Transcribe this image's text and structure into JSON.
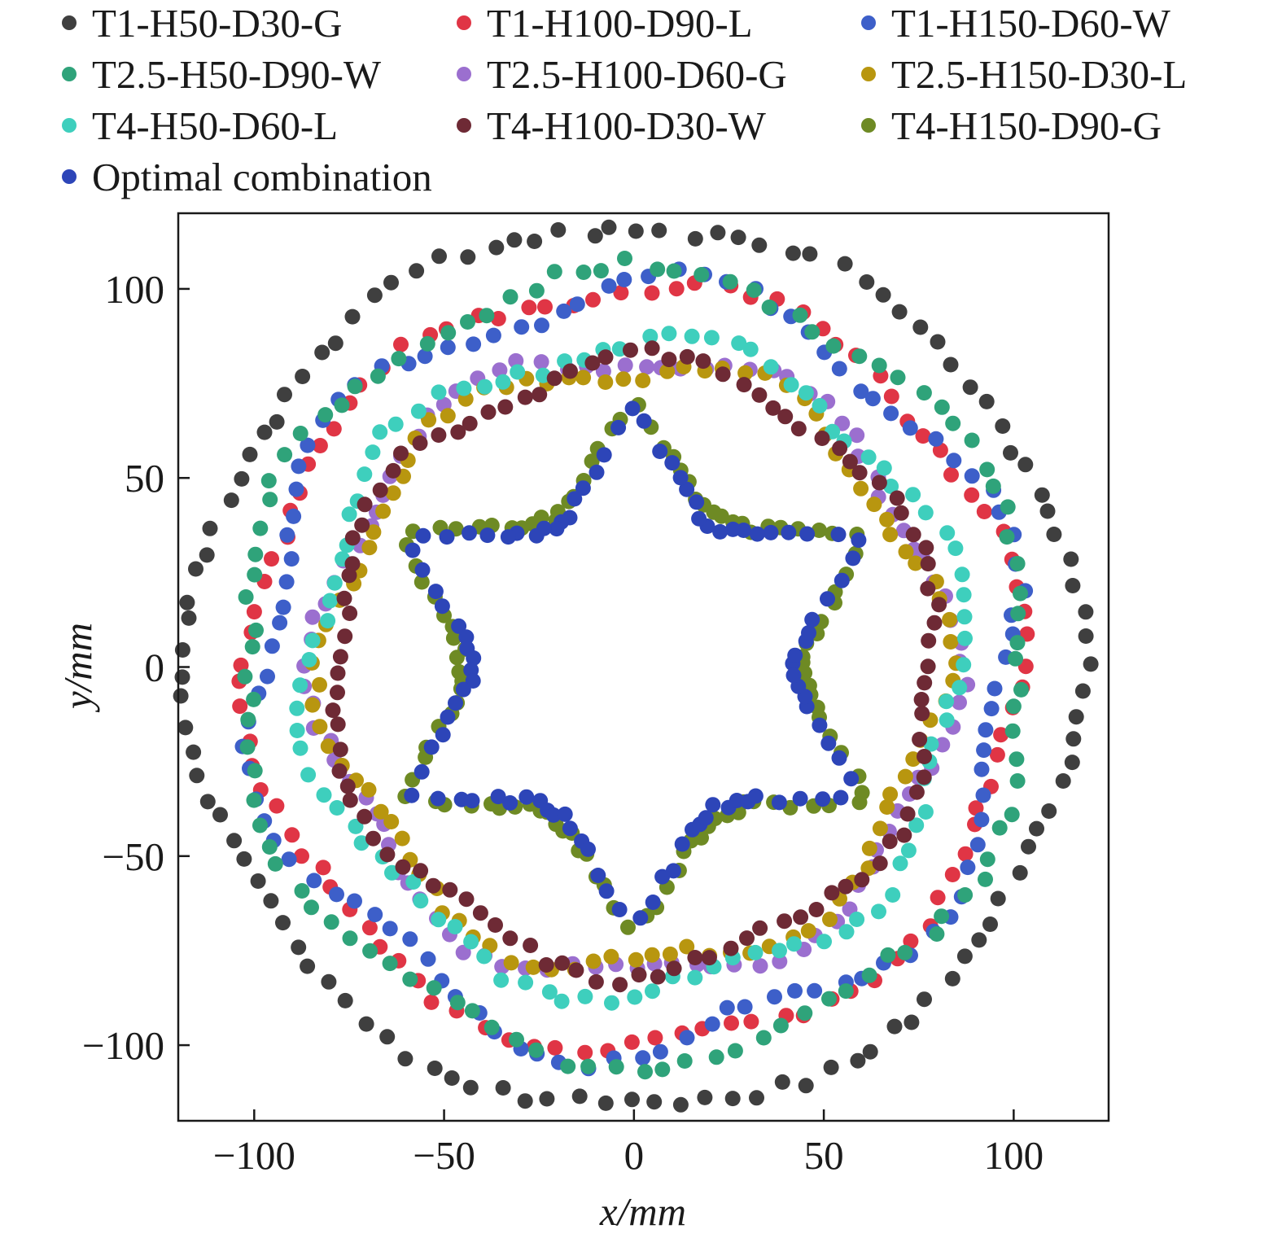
{
  "chart_data": {
    "type": "scatter",
    "xlabel": "x/mm",
    "ylabel": "y/mm",
    "xlim": [
      -120,
      125
    ],
    "ylim": [
      -120,
      120
    ],
    "xticks": [
      -100,
      -50,
      0,
      50,
      100
    ],
    "yticks": [
      -100,
      -50,
      0,
      50,
      100
    ],
    "xtick_labels": [
      "−100",
      "−50",
      "0",
      "50",
      "100"
    ],
    "ytick_labels": [
      "−100",
      "−50",
      "0",
      "50",
      "100"
    ],
    "legend_position": "top",
    "series": [
      {
        "name": "T1-H50-D30-G",
        "color": "#3f3f3f",
        "shape": "round",
        "base_radius": 117,
        "amplitude": 2,
        "lobes": 6,
        "phase": 0,
        "points": 110
      },
      {
        "name": "T1-H100-D90-L",
        "color": "#e03545",
        "shape": "round",
        "base_radius": 101,
        "amplitude": 3,
        "lobes": 6,
        "phase": 10,
        "points": 95
      },
      {
        "name": "T1-H150-D60-W",
        "color": "#3d5fc9",
        "shape": "round",
        "base_radius": 100,
        "amplitude": 6,
        "lobes": 6,
        "phase": 20,
        "points": 100
      },
      {
        "name": "T2.5-H50-D90-W",
        "color": "#2fa37a",
        "shape": "round",
        "base_radius": 104,
        "amplitude": 3,
        "lobes": 6,
        "phase": 30,
        "points": 100
      },
      {
        "name": "T2.5-H100-D60-G",
        "color": "#9b6fcf",
        "shape": "round",
        "base_radius": 83,
        "amplitude": 4,
        "lobes": 6,
        "phase": 0,
        "points": 95
      },
      {
        "name": "T2.5-H150-D30-L",
        "color": "#b8960f",
        "shape": "round",
        "base_radius": 80,
        "amplitude": 4,
        "lobes": 6,
        "phase": 5,
        "points": 95
      },
      {
        "name": "T4-H50-D60-L",
        "color": "#3ecfbd",
        "shape": "round",
        "base_radius": 86,
        "amplitude": 4,
        "lobes": 6,
        "phase": 15,
        "points": 95
      },
      {
        "name": "T4-H100-D30-W",
        "color": "#6e2a35",
        "shape": "round",
        "base_radius": 80,
        "amplitude": 3,
        "lobes": 6,
        "phase": 25,
        "points": 100
      },
      {
        "name": "T4-H150-D90-G",
        "color": "#6e8a24",
        "shape": "star",
        "base_radius": 58,
        "amplitude": 13,
        "lobes": 6,
        "phase": 30,
        "points": 110
      },
      {
        "name": "Optimal combination",
        "color": "#2d45b8",
        "shape": "star",
        "base_radius": 56,
        "amplitude": 13,
        "lobes": 6,
        "phase": 30,
        "points": 100
      }
    ]
  }
}
